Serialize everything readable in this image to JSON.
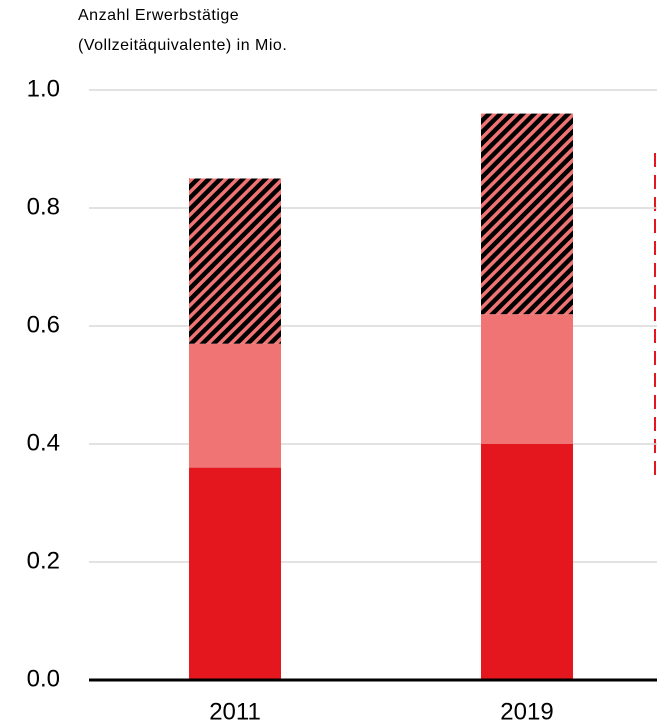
{
  "chart_data": {
    "type": "stacked_bar",
    "ylabel": [
      "Anzahl Erwerbstätige",
      "(Vollzeitäquivalente) in Mio."
    ],
    "categories": [
      "2011",
      "2019"
    ],
    "series": [
      {
        "color": "#e3171d",
        "values": [
          0.36,
          0.4
        ]
      },
      {
        "color": "#f07474",
        "values": [
          0.21,
          0.22
        ]
      },
      {
        "color": "#f07474",
        "hatch": true,
        "values": [
          0.28,
          0.34
        ]
      }
    ],
    "ylim": [
      0,
      1
    ],
    "yticks": [
      {
        "value": 0,
        "label": "0.0"
      },
      0.2,
      0.4,
      0.6,
      0.8,
      {
        "value": 1,
        "label": "1.0"
      }
    ],
    "grid": true
  }
}
